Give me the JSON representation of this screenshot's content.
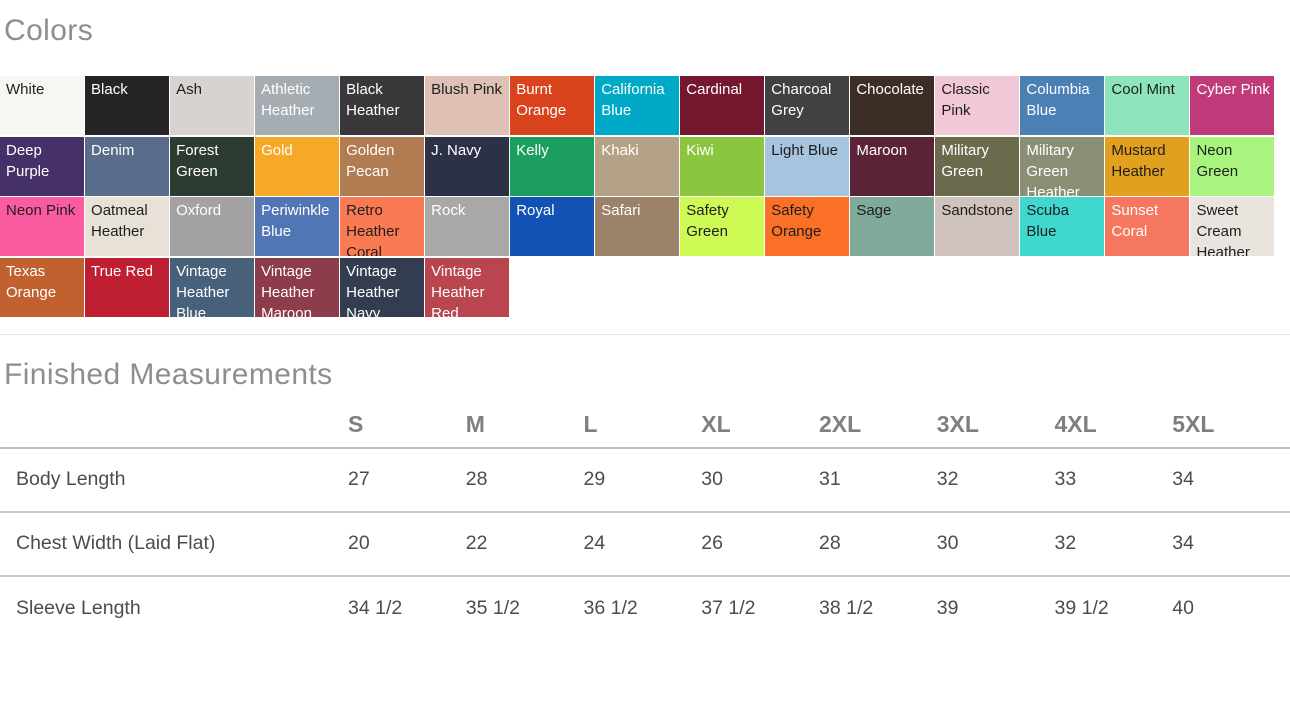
{
  "colors_section": {
    "title": "Colors",
    "swatches": [
      {
        "label": "White",
        "hex": "#f7f6f3",
        "text": "dark"
      },
      {
        "label": "Black",
        "hex": "#262425",
        "text": "light"
      },
      {
        "label": "Ash",
        "hex": "#d6d3d0",
        "text": "dark"
      },
      {
        "label": "Athletic Heather",
        "hex": "#a5acb2",
        "text": "light"
      },
      {
        "label": "Black Heather",
        "hex": "#3b383b",
        "text": "light"
      },
      {
        "label": "Blush Pink",
        "hex": "#dec0b4",
        "text": "dark"
      },
      {
        "label": "Burnt Orange",
        "hex": "#d8431d",
        "text": "light"
      },
      {
        "label": "California Blue",
        "hex": "#00a9c6",
        "text": "light"
      },
      {
        "label": "Cardinal",
        "hex": "#74172f",
        "text": "light"
      },
      {
        "label": "Charcoal Grey",
        "hex": "#414143",
        "text": "light"
      },
      {
        "label": "Chocolate",
        "hex": "#3d2d27",
        "text": "light"
      },
      {
        "label": "Classic Pink",
        "hex": "#f0c8d6",
        "text": "dark"
      },
      {
        "label": "Columbia Blue",
        "hex": "#4b80b4",
        "text": "light"
      },
      {
        "label": "Cool Mint",
        "hex": "#8de4bd",
        "text": "dark"
      },
      {
        "label": "Cyber Pink",
        "hex": "#c03b79",
        "text": "light"
      },
      {
        "label": "Deep Purple",
        "hex": "#453167",
        "text": "light"
      },
      {
        "label": "Denim",
        "hex": "#5a6c8b",
        "text": "light"
      },
      {
        "label": "Forest Green",
        "hex": "#2d3c30",
        "text": "light"
      },
      {
        "label": "Gold",
        "hex": "#f8a827",
        "text": "light"
      },
      {
        "label": "Golden Pecan",
        "hex": "#b17c52",
        "text": "light"
      },
      {
        "label": "J. Navy",
        "hex": "#2d3146",
        "text": "light"
      },
      {
        "label": "Kelly",
        "hex": "#1c9f5e",
        "text": "light"
      },
      {
        "label": "Khaki",
        "hex": "#b5a185",
        "text": "light"
      },
      {
        "label": "Kiwi",
        "hex": "#8cc63f",
        "text": "light"
      },
      {
        "label": "Light Blue",
        "hex": "#a6c4dd",
        "text": "dark"
      },
      {
        "label": "Maroon",
        "hex": "#5c2238",
        "text": "light"
      },
      {
        "label": "Military Green",
        "hex": "#6b6a4d",
        "text": "light"
      },
      {
        "label": "Military Green Heather",
        "hex": "#8b8f76",
        "text": "light"
      },
      {
        "label": "Mustard Heather",
        "hex": "#e1a01d",
        "text": "dark"
      },
      {
        "label": "Neon Green",
        "hex": "#a9f47e",
        "text": "dark"
      },
      {
        "label": "Neon Pink",
        "hex": "#fb5ca1",
        "text": "dark"
      },
      {
        "label": "Oatmeal Heather",
        "hex": "#e7e1d7",
        "text": "dark"
      },
      {
        "label": "Oxford",
        "hex": "#a3a1a1",
        "text": "light"
      },
      {
        "label": "Periwinkle Blue",
        "hex": "#5076b5",
        "text": "light"
      },
      {
        "label": "Retro Heather Coral",
        "hex": "#fa7b53",
        "text": "dark"
      },
      {
        "label": "Rock",
        "hex": "#a8a8a6",
        "text": "light"
      },
      {
        "label": "Royal",
        "hex": "#1252b4",
        "text": "light"
      },
      {
        "label": "Safari",
        "hex": "#9c8268",
        "text": "light"
      },
      {
        "label": "Safety Green",
        "hex": "#cdfa55",
        "text": "dark"
      },
      {
        "label": "Safety Orange",
        "hex": "#fa7026",
        "text": "dark"
      },
      {
        "label": "Sage",
        "hex": "#80aa99",
        "text": "dark"
      },
      {
        "label": "Sandstone",
        "hex": "#d0c2bd",
        "text": "dark"
      },
      {
        "label": "Scuba Blue",
        "hex": "#40d8ce",
        "text": "dark"
      },
      {
        "label": "Sunset Coral",
        "hex": "#f5775f",
        "text": "light"
      },
      {
        "label": "Sweet Cream Heather",
        "hex": "#e9e5de",
        "text": "dark"
      },
      {
        "label": "Texas Orange",
        "hex": "#c0612f",
        "text": "light"
      },
      {
        "label": "True Red",
        "hex": "#bf1e33",
        "text": "light"
      },
      {
        "label": "Vintage Heather Blue",
        "hex": "#47617b",
        "text": "light"
      },
      {
        "label": "Vintage Heather Maroon",
        "hex": "#8d3c4b",
        "text": "light"
      },
      {
        "label": "Vintage Heather Navy",
        "hex": "#333d4f",
        "text": "light"
      },
      {
        "label": "Vintage Heather Red",
        "hex": "#b9454f",
        "text": "light"
      }
    ]
  },
  "measurements_section": {
    "title": "Finished Measurements",
    "table": {
      "sizes": [
        "S",
        "M",
        "L",
        "XL",
        "2XL",
        "3XL",
        "4XL",
        "5XL"
      ],
      "rows": [
        {
          "label": "Body Length",
          "values": [
            "27",
            "28",
            "29",
            "30",
            "31",
            "32",
            "33",
            "34"
          ]
        },
        {
          "label": "Chest Width (Laid Flat)",
          "values": [
            "20",
            "22",
            "24",
            "26",
            "28",
            "30",
            "32",
            "34"
          ]
        },
        {
          "label": "Sleeve Length",
          "values": [
            "34 1/2",
            "35 1/2",
            "36 1/2",
            "37 1/2",
            "38 1/2",
            "39",
            "39 1/2",
            "40"
          ]
        }
      ]
    }
  }
}
